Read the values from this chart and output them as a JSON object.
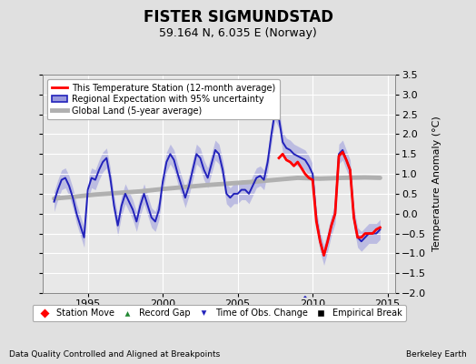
{
  "title": "FISTER SIGMUNDSTAD",
  "subtitle": "59.164 N, 6.035 E (Norway)",
  "ylabel": "Temperature Anomaly (°C)",
  "footer_left": "Data Quality Controlled and Aligned at Breakpoints",
  "footer_right": "Berkeley Earth",
  "xlim": [
    1992.0,
    2015.5
  ],
  "ylim": [
    -2.0,
    3.5
  ],
  "yticks": [
    -2,
    -1.5,
    -1,
    -0.5,
    0,
    0.5,
    1,
    1.5,
    2,
    2.5,
    3,
    3.5
  ],
  "xticks": [
    1995,
    2000,
    2005,
    2010,
    2015
  ],
  "bg_color": "#e0e0e0",
  "plot_bg_color": "#e8e8e8",
  "grid_color": "white",
  "regional_color": "#2222bb",
  "regional_fill_color": "#9999dd",
  "station_color": "red",
  "global_color": "#b0b0b0",
  "legend1_labels": [
    "This Temperature Station (12-month average)",
    "Regional Expectation with 95% uncertainty",
    "Global Land (5-year average)"
  ],
  "legend2_labels": [
    "Station Move",
    "Record Gap",
    "Time of Obs. Change",
    "Empirical Break"
  ],
  "obs_change_x": 2009.5,
  "time_x": [
    1992.75,
    1993.0,
    1993.25,
    1993.5,
    1993.75,
    1994.0,
    1994.25,
    1994.5,
    1994.75,
    1995.0,
    1995.25,
    1995.5,
    1995.75,
    1996.0,
    1996.25,
    1996.5,
    1996.75,
    1997.0,
    1997.25,
    1997.5,
    1997.75,
    1998.0,
    1998.25,
    1998.5,
    1998.75,
    1999.0,
    1999.25,
    1999.5,
    1999.75,
    2000.0,
    2000.25,
    2000.5,
    2000.75,
    2001.0,
    2001.25,
    2001.5,
    2001.75,
    2002.0,
    2002.25,
    2002.5,
    2002.75,
    2003.0,
    2003.25,
    2003.5,
    2003.75,
    2004.0,
    2004.25,
    2004.5,
    2004.75,
    2005.0,
    2005.25,
    2005.5,
    2005.75,
    2006.0,
    2006.25,
    2006.5,
    2006.75,
    2007.0,
    2007.25,
    2007.5,
    2007.75,
    2008.0,
    2008.25,
    2008.5,
    2008.75,
    2009.0,
    2009.25,
    2009.5,
    2009.75,
    2010.0,
    2010.25,
    2010.5,
    2010.75,
    2011.0,
    2011.25,
    2011.5,
    2011.75,
    2012.0,
    2012.25,
    2012.5,
    2012.75,
    2013.0,
    2013.25,
    2013.5,
    2013.75,
    2014.0,
    2014.25,
    2014.5
  ],
  "regional_y": [
    0.3,
    0.6,
    0.85,
    0.9,
    0.7,
    0.4,
    0.0,
    -0.3,
    -0.6,
    0.6,
    0.9,
    0.85,
    1.1,
    1.3,
    1.4,
    0.9,
    0.2,
    -0.3,
    0.2,
    0.5,
    0.3,
    0.1,
    -0.2,
    0.2,
    0.5,
    0.2,
    -0.1,
    -0.2,
    0.1,
    0.8,
    1.3,
    1.5,
    1.35,
    1.0,
    0.7,
    0.4,
    0.7,
    1.1,
    1.5,
    1.4,
    1.1,
    0.9,
    1.25,
    1.6,
    1.5,
    1.1,
    0.5,
    0.4,
    0.5,
    0.5,
    0.6,
    0.6,
    0.5,
    0.7,
    0.9,
    0.95,
    0.85,
    1.3,
    2.0,
    2.6,
    2.4,
    1.8,
    1.65,
    1.6,
    1.5,
    1.45,
    1.4,
    1.35,
    1.2,
    1.0,
    -0.15,
    -0.7,
    -1.05,
    -0.7,
    -0.3,
    0.0,
    1.5,
    1.6,
    1.35,
    1.1,
    -0.1,
    -0.6,
    -0.7,
    -0.6,
    -0.5,
    -0.5,
    -0.5,
    -0.4
  ],
  "regional_upper": [
    0.55,
    0.85,
    1.1,
    1.15,
    0.95,
    0.65,
    0.25,
    -0.05,
    -0.35,
    0.85,
    1.15,
    1.1,
    1.35,
    1.55,
    1.65,
    1.15,
    0.45,
    -0.05,
    0.45,
    0.75,
    0.55,
    0.35,
    0.05,
    0.45,
    0.75,
    0.45,
    0.15,
    0.05,
    0.35,
    1.05,
    1.55,
    1.75,
    1.6,
    1.25,
    0.95,
    0.65,
    0.95,
    1.35,
    1.75,
    1.65,
    1.35,
    1.15,
    1.5,
    1.85,
    1.75,
    1.35,
    0.75,
    0.65,
    0.75,
    0.75,
    0.85,
    0.85,
    0.75,
    0.95,
    1.15,
    1.2,
    1.1,
    1.55,
    2.25,
    2.85,
    2.65,
    2.05,
    1.9,
    1.85,
    1.75,
    1.7,
    1.65,
    1.6,
    1.45,
    1.25,
    0.1,
    -0.45,
    -0.8,
    -0.45,
    -0.05,
    0.25,
    1.75,
    1.85,
    1.6,
    1.35,
    0.15,
    -0.35,
    -0.45,
    -0.35,
    -0.25,
    -0.25,
    -0.25,
    -0.15
  ],
  "regional_lower": [
    0.05,
    0.35,
    0.6,
    0.65,
    0.45,
    0.15,
    -0.25,
    -0.55,
    -0.85,
    0.35,
    0.65,
    0.6,
    0.85,
    1.05,
    1.15,
    0.65,
    -0.05,
    -0.55,
    -0.05,
    0.25,
    0.05,
    -0.15,
    -0.45,
    -0.05,
    0.25,
    -0.05,
    -0.35,
    -0.45,
    -0.15,
    0.55,
    1.05,
    1.25,
    1.1,
    0.75,
    0.45,
    0.15,
    0.45,
    0.85,
    1.25,
    1.15,
    0.85,
    0.65,
    1.0,
    1.35,
    1.25,
    0.85,
    0.25,
    0.15,
    0.25,
    0.25,
    0.35,
    0.35,
    0.25,
    0.45,
    0.65,
    0.7,
    0.6,
    1.05,
    1.75,
    2.35,
    2.15,
    1.55,
    1.4,
    1.35,
    1.25,
    1.2,
    1.15,
    1.1,
    0.95,
    0.75,
    -0.4,
    -0.95,
    -1.3,
    -0.95,
    -0.55,
    -0.25,
    1.25,
    1.35,
    1.1,
    0.85,
    -0.35,
    -0.85,
    -0.95,
    -0.85,
    -0.75,
    -0.75,
    -0.75,
    -0.65
  ],
  "station_x": [
    2007.75,
    2008.0,
    2008.25,
    2008.5,
    2008.75,
    2009.0,
    2009.25,
    2009.5,
    2009.75,
    2010.0,
    2010.25,
    2010.5,
    2010.75,
    2011.0,
    2011.25,
    2011.5,
    2011.75,
    2012.0,
    2012.25,
    2012.5,
    2012.75,
    2013.0,
    2013.25,
    2013.5,
    2013.75,
    2014.0,
    2014.25,
    2014.5
  ],
  "station_y": [
    1.4,
    1.5,
    1.35,
    1.3,
    1.2,
    1.3,
    1.15,
    1.0,
    0.9,
    0.85,
    -0.2,
    -0.7,
    -1.05,
    -0.7,
    -0.3,
    0.0,
    1.45,
    1.55,
    1.35,
    1.1,
    -0.1,
    -0.6,
    -0.6,
    -0.5,
    -0.5,
    -0.5,
    -0.4,
    -0.35
  ],
  "global_x": [
    1992.75,
    1994.0,
    1995.5,
    1997.0,
    1998.5,
    2000.0,
    2001.5,
    2003.0,
    2004.5,
    2006.0,
    2007.5,
    2009.0,
    2010.5,
    2012.0,
    2013.5,
    2014.5
  ],
  "global_y": [
    0.38,
    0.42,
    0.48,
    0.52,
    0.56,
    0.62,
    0.67,
    0.72,
    0.76,
    0.8,
    0.85,
    0.9,
    0.88,
    0.9,
    0.91,
    0.9
  ]
}
